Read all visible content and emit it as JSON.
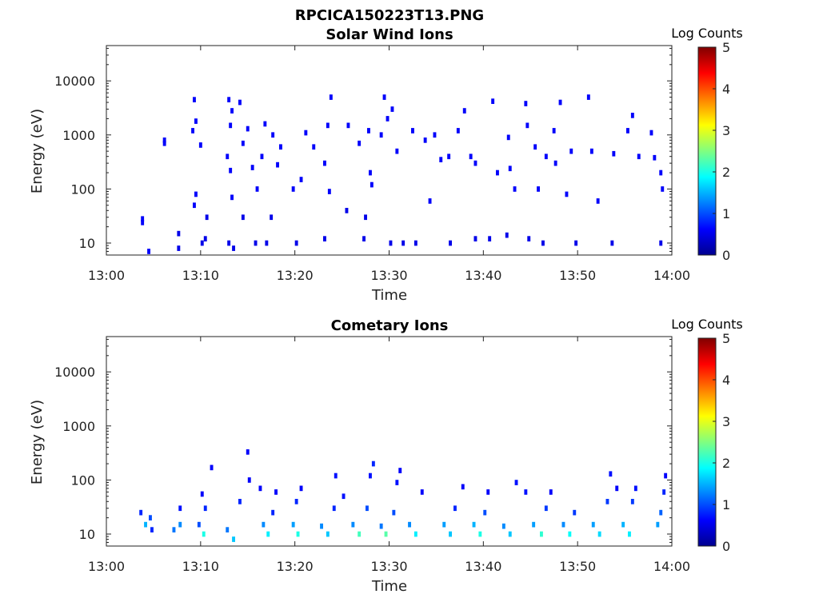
{
  "figure": {
    "title": "RPCICA150223T13.PNG"
  },
  "colormap": {
    "name": "jet",
    "stops": [
      "#00008f",
      "#0000ff",
      "#0080ff",
      "#00ffff",
      "#80ff80",
      "#ffff00",
      "#ff8000",
      "#ff0000",
      "#800000"
    ]
  },
  "chart_data": [
    {
      "type": "heatmap",
      "title": "Solar Wind Ions",
      "xlabel": "Time",
      "ylabel": "Energy (eV)",
      "xlim": [
        "13:00",
        "14:00"
      ],
      "ylim": [
        6,
        45000
      ],
      "yscale": "log",
      "xticks": [
        "13:00",
        "13:10",
        "13:20",
        "13:30",
        "13:40",
        "13:50",
        "14:00"
      ],
      "yticks": [
        "10",
        "100",
        "1000",
        "10000"
      ],
      "colorbar": {
        "label": "Log Counts",
        "range": [
          0,
          5
        ],
        "ticks": [
          "0",
          "1",
          "2",
          "3",
          "4",
          "5"
        ]
      },
      "cells": [
        [
          "13:03:40",
          24,
          0.6
        ],
        [
          "13:03:40",
          28,
          0.6
        ],
        [
          "13:04:20",
          7,
          0.6
        ],
        [
          "13:06:00",
          700,
          0.6
        ],
        [
          "13:06:00",
          800,
          0.6
        ],
        [
          "13:07:30",
          8,
          0.5
        ],
        [
          "13:07:30",
          15,
          0.5
        ],
        [
          "13:09:10",
          4500,
          0.6
        ],
        [
          "13:09:20",
          1800,
          0.6
        ],
        [
          "13:09:00",
          1200,
          0.6
        ],
        [
          "13:09:50",
          650,
          0.6
        ],
        [
          "13:09:20",
          80,
          0.6
        ],
        [
          "13:09:10",
          50,
          0.6
        ],
        [
          "13:10:00",
          10,
          0.5
        ],
        [
          "13:10:20",
          12,
          0.5
        ],
        [
          "13:10:30",
          30,
          0.5
        ],
        [
          "13:12:50",
          4500,
          0.6
        ],
        [
          "13:13:10",
          2800,
          0.6
        ],
        [
          "13:13:00",
          1500,
          0.6
        ],
        [
          "13:12:40",
          400,
          0.6
        ],
        [
          "13:13:00",
          220,
          0.6
        ],
        [
          "13:13:10",
          70,
          0.6
        ],
        [
          "13:12:50",
          10,
          0.5
        ],
        [
          "13:13:20",
          8,
          0.5
        ],
        [
          "13:14:00",
          4000,
          0.6
        ],
        [
          "13:14:20",
          700,
          0.6
        ],
        [
          "13:14:50",
          1300,
          0.6
        ],
        [
          "13:15:20",
          250,
          0.6
        ],
        [
          "13:15:50",
          100,
          0.6
        ],
        [
          "13:14:20",
          30,
          0.5
        ],
        [
          "13:15:40",
          10,
          0.5
        ],
        [
          "13:16:20",
          400,
          0.6
        ],
        [
          "13:16:40",
          1600,
          0.6
        ],
        [
          "13:17:30",
          1000,
          0.6
        ],
        [
          "13:18:00",
          280,
          0.6
        ],
        [
          "13:18:20",
          600,
          0.6
        ],
        [
          "13:17:20",
          30,
          0.5
        ],
        [
          "13:16:50",
          10,
          0.5
        ],
        [
          "13:19:40",
          100,
          0.6
        ],
        [
          "13:20:30",
          150,
          0.6
        ],
        [
          "13:20:00",
          10,
          0.5
        ],
        [
          "13:21:00",
          1100,
          0.6
        ],
        [
          "13:21:50",
          600,
          0.6
        ],
        [
          "13:23:00",
          300,
          0.6
        ],
        [
          "13:23:20",
          1500,
          0.6
        ],
        [
          "13:23:40",
          5000,
          0.6
        ],
        [
          "13:23:30",
          90,
          0.6
        ],
        [
          "13:23:00",
          12,
          0.5
        ],
        [
          "13:25:20",
          40,
          0.5
        ],
        [
          "13:25:30",
          1500,
          0.6
        ],
        [
          "13:26:40",
          700,
          0.6
        ],
        [
          "13:27:40",
          1200,
          0.6
        ],
        [
          "13:27:50",
          200,
          0.6
        ],
        [
          "13:28:00",
          120,
          0.6
        ],
        [
          "13:27:20",
          30,
          0.5
        ],
        [
          "13:27:10",
          12,
          0.5
        ],
        [
          "13:29:20",
          5000,
          0.6
        ],
        [
          "13:30:10",
          3000,
          0.6
        ],
        [
          "13:30:40",
          500,
          0.6
        ],
        [
          "13:29:40",
          2000,
          0.6
        ],
        [
          "13:29:00",
          1000,
          0.6
        ],
        [
          "13:30:00",
          10,
          0.5
        ],
        [
          "13:31:20",
          10,
          0.5
        ],
        [
          "13:32:20",
          1200,
          0.6
        ],
        [
          "13:33:40",
          800,
          0.6
        ],
        [
          "13:34:40",
          1000,
          0.6
        ],
        [
          "13:35:20",
          350,
          0.6
        ],
        [
          "13:34:10",
          60,
          0.6
        ],
        [
          "13:32:40",
          10,
          0.5
        ],
        [
          "13:36:10",
          400,
          0.6
        ],
        [
          "13:37:10",
          1200,
          0.6
        ],
        [
          "13:37:50",
          2800,
          0.6
        ],
        [
          "13:38:30",
          400,
          0.6
        ],
        [
          "13:39:00",
          300,
          0.6
        ],
        [
          "13:36:20",
          10,
          0.5
        ],
        [
          "13:39:00",
          12,
          0.5
        ],
        [
          "13:40:50",
          4200,
          0.6
        ],
        [
          "13:41:20",
          200,
          0.6
        ],
        [
          "13:42:30",
          900,
          0.6
        ],
        [
          "13:42:40",
          240,
          0.6
        ],
        [
          "13:43:10",
          100,
          0.6
        ],
        [
          "13:40:30",
          12,
          0.5
        ],
        [
          "13:42:20",
          14,
          0.5
        ],
        [
          "13:44:20",
          3800,
          0.6
        ],
        [
          "13:44:30",
          1500,
          0.6
        ],
        [
          "13:45:20",
          600,
          0.6
        ],
        [
          "13:45:40",
          100,
          0.6
        ],
        [
          "13:46:30",
          400,
          0.6
        ],
        [
          "13:44:40",
          12,
          0.5
        ],
        [
          "13:46:10",
          10,
          0.5
        ],
        [
          "13:47:20",
          1200,
          0.6
        ],
        [
          "13:47:30",
          300,
          0.6
        ],
        [
          "13:48:00",
          4000,
          0.6
        ],
        [
          "13:49:10",
          500,
          0.6
        ],
        [
          "13:48:40",
          80,
          0.6
        ],
        [
          "13:49:40",
          10,
          0.5
        ],
        [
          "13:51:00",
          5000,
          0.6
        ],
        [
          "13:51:20",
          500,
          0.6
        ],
        [
          "13:52:00",
          60,
          0.6
        ],
        [
          "13:53:40",
          450,
          0.6
        ],
        [
          "13:55:10",
          1200,
          0.6
        ],
        [
          "13:53:30",
          10,
          0.5
        ],
        [
          "13:55:40",
          2300,
          0.6
        ],
        [
          "13:56:20",
          400,
          0.6
        ],
        [
          "13:57:40",
          1100,
          0.6
        ],
        [
          "13:58:00",
          380,
          0.6
        ],
        [
          "13:58:40",
          200,
          0.6
        ],
        [
          "13:58:50",
          100,
          0.6
        ],
        [
          "13:58:40",
          10,
          0.5
        ]
      ]
    },
    {
      "type": "heatmap",
      "title": "Cometary Ions",
      "xlabel": "Time",
      "ylabel": "Energy (eV)",
      "xlim": [
        "13:00",
        "14:00"
      ],
      "ylim": [
        6,
        45000
      ],
      "yscale": "log",
      "xticks": [
        "13:00",
        "13:10",
        "13:20",
        "13:30",
        "13:40",
        "13:50",
        "14:00"
      ],
      "yticks": [
        "10",
        "100",
        "1000",
        "10000"
      ],
      "colorbar": {
        "label": "Log Counts",
        "range": [
          0,
          5
        ],
        "ticks": [
          "0",
          "1",
          "2",
          "3",
          "4",
          "5"
        ]
      },
      "cells": [
        [
          "13:03:30",
          25,
          0.8
        ],
        [
          "13:04:00",
          15,
          1.5
        ],
        [
          "13:04:30",
          20,
          1.0
        ],
        [
          "13:04:40",
          12,
          0.8
        ],
        [
          "13:07:00",
          12,
          1.2
        ],
        [
          "13:07:40",
          15,
          1.3
        ],
        [
          "13:07:40",
          30,
          0.7
        ],
        [
          "13:09:40",
          15,
          1.0
        ],
        [
          "13:10:10",
          10,
          2.0
        ],
        [
          "13:10:20",
          30,
          0.8
        ],
        [
          "13:10:00",
          55,
          0.6
        ],
        [
          "13:11:00",
          170,
          0.6
        ],
        [
          "13:12:40",
          12,
          1.2
        ],
        [
          "13:13:20",
          8,
          1.6
        ],
        [
          "13:14:00",
          40,
          0.8
        ],
        [
          "13:14:50",
          330,
          0.6
        ],
        [
          "13:15:00",
          100,
          0.6
        ],
        [
          "13:16:10",
          70,
          0.6
        ],
        [
          "13:16:30",
          15,
          1.3
        ],
        [
          "13:17:00",
          10,
          1.8
        ],
        [
          "13:17:30",
          25,
          0.8
        ],
        [
          "13:17:50",
          60,
          0.6
        ],
        [
          "13:19:40",
          15,
          1.4
        ],
        [
          "13:20:10",
          10,
          2.0
        ],
        [
          "13:20:00",
          40,
          0.8
        ],
        [
          "13:20:30",
          70,
          0.6
        ],
        [
          "13:22:40",
          14,
          1.3
        ],
        [
          "13:23:20",
          10,
          1.6
        ],
        [
          "13:24:00",
          30,
          0.8
        ],
        [
          "13:24:10",
          120,
          0.7
        ],
        [
          "13:25:00",
          50,
          0.7
        ],
        [
          "13:26:00",
          15,
          1.3
        ],
        [
          "13:26:40",
          10,
          2.2
        ],
        [
          "13:27:30",
          30,
          1.0
        ],
        [
          "13:27:50",
          120,
          0.7
        ],
        [
          "13:28:10",
          200,
          0.8
        ],
        [
          "13:29:00",
          14,
          1.2
        ],
        [
          "13:29:30",
          10,
          2.3
        ],
        [
          "13:30:20",
          25,
          1.0
        ],
        [
          "13:30:40",
          90,
          0.7
        ],
        [
          "13:31:00",
          150,
          0.6
        ],
        [
          "13:32:00",
          15,
          1.3
        ],
        [
          "13:32:40",
          10,
          1.8
        ],
        [
          "13:33:20",
          60,
          0.6
        ],
        [
          "13:35:40",
          15,
          1.4
        ],
        [
          "13:36:20",
          10,
          1.6
        ],
        [
          "13:36:50",
          30,
          0.8
        ],
        [
          "13:37:40",
          75,
          0.6
        ],
        [
          "13:38:50",
          15,
          1.5
        ],
        [
          "13:39:30",
          10,
          2.0
        ],
        [
          "13:40:00",
          25,
          1.0
        ],
        [
          "13:40:20",
          60,
          0.6
        ],
        [
          "13:42:00",
          14,
          1.3
        ],
        [
          "13:42:40",
          10,
          1.6
        ],
        [
          "13:43:20",
          90,
          0.7
        ],
        [
          "13:44:20",
          60,
          0.7
        ],
        [
          "13:45:10",
          15,
          1.4
        ],
        [
          "13:46:00",
          10,
          2.1
        ],
        [
          "13:46:30",
          30,
          0.9
        ],
        [
          "13:47:00",
          60,
          0.6
        ],
        [
          "13:48:20",
          15,
          1.3
        ],
        [
          "13:49:00",
          10,
          1.9
        ],
        [
          "13:49:30",
          25,
          0.9
        ],
        [
          "13:51:30",
          15,
          1.4
        ],
        [
          "13:52:10",
          10,
          1.7
        ],
        [
          "13:53:00",
          40,
          0.9
        ],
        [
          "13:53:20",
          130,
          0.7
        ],
        [
          "13:54:00",
          70,
          0.6
        ],
        [
          "13:54:40",
          15,
          1.5
        ],
        [
          "13:55:20",
          10,
          1.8
        ],
        [
          "13:55:40",
          40,
          0.9
        ],
        [
          "13:56:00",
          70,
          0.7
        ],
        [
          "13:58:20",
          15,
          1.4
        ],
        [
          "13:58:40",
          25,
          1.1
        ],
        [
          "13:59:00",
          60,
          0.8
        ],
        [
          "13:59:10",
          120,
          0.6
        ]
      ]
    }
  ]
}
